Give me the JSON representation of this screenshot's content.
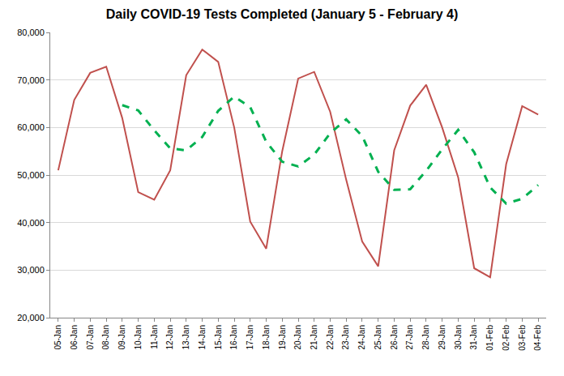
{
  "chart_data": {
    "type": "line",
    "title": "Daily COVID-19 Tests Completed (January 5 - February 4)",
    "categories": [
      "05-Jan",
      "06-Jan",
      "07-Jan",
      "08-Jan",
      "09-Jan",
      "10-Jan",
      "11-Jan",
      "12-Jan",
      "13-Jan",
      "14-Jan",
      "15-Jan",
      "16-Jan",
      "17-Jan",
      "18-Jan",
      "19-Jan",
      "20-Jan",
      "21-Jan",
      "22-Jan",
      "23-Jan",
      "24-Jan",
      "25-Jan",
      "26-Jan",
      "27-Jan",
      "28-Jan",
      "29-Jan",
      "30-Jan",
      "31-Jan",
      "01-Feb",
      "02-Feb",
      "03-Feb",
      "04-Feb"
    ],
    "series": [
      {
        "color": "#c0504d",
        "line_style": "solid",
        "values": [
          51000,
          65800,
          71500,
          72800,
          62000,
          46400,
          44800,
          51000,
          71000,
          76400,
          73800,
          60000,
          40200,
          34500,
          55000,
          70300,
          71700,
          63300,
          49000,
          36000,
          30800,
          55200,
          64600,
          69000,
          60000,
          49500,
          30400,
          28500,
          52300,
          64500,
          62700
        ]
      },
      {
        "color": "#00b050",
        "line_style": "dash",
        "values": [
          null,
          null,
          null,
          null,
          64700,
          63600,
          59400,
          55600,
          55200,
          58000,
          63500,
          66500,
          64300,
          57000,
          52800,
          51800,
          54300,
          58800,
          61700,
          58200,
          50700,
          46900,
          47000,
          50900,
          55400,
          59500,
          54800,
          47400,
          44000,
          45000,
          47900
        ]
      }
    ],
    "ylim": [
      20000,
      80000
    ],
    "yticks": [
      {
        "value": 20000,
        "label": "20,000"
      },
      {
        "value": 30000,
        "label": "30,000"
      },
      {
        "value": 40000,
        "label": "40,000"
      },
      {
        "value": 50000,
        "label": "50,000"
      },
      {
        "value": 60000,
        "label": "60,000"
      },
      {
        "value": 70000,
        "label": "70,000"
      },
      {
        "value": 80000,
        "label": "80,000"
      }
    ],
    "grid": true
  }
}
